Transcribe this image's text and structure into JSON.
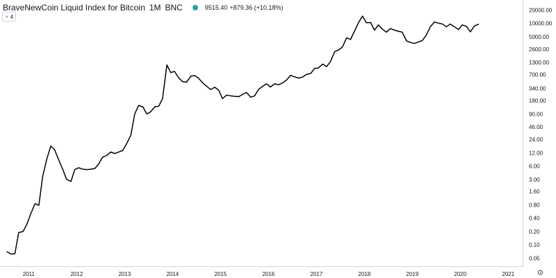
{
  "header": {
    "title": "BraveNewCoin Liquid Index for Bitcoin",
    "interval": "1M",
    "exchange": "BNC",
    "status_color": "#26a69a",
    "price": "9515.40",
    "change": "+879.36 (+10.18%)"
  },
  "collapse_button": {
    "count": "4",
    "icon": "chevron-down-icon"
  },
  "settings": {
    "icon": "gear-icon"
  },
  "colors": {
    "line": "#000000",
    "axis": "#d1d4dc",
    "text": "#131722",
    "up": "#26a69a"
  },
  "chart_data": {
    "type": "line",
    "title": "BraveNewCoin Liquid Index for Bitcoin",
    "yscale": "log",
    "ylim": [
      0.033,
      29000
    ],
    "xlim": [
      2010.4,
      2021.3
    ],
    "grid": false,
    "y_ticks": [
      {
        "v": 20000,
        "label": "20000.00"
      },
      {
        "v": 10000,
        "label": "10000.00"
      },
      {
        "v": 5000,
        "label": "5000.00"
      },
      {
        "v": 2600,
        "label": "2600.00"
      },
      {
        "v": 1300,
        "label": "1300.00"
      },
      {
        "v": 700,
        "label": "700.00"
      },
      {
        "v": 340,
        "label": "340.00"
      },
      {
        "v": 180,
        "label": "180.00"
      },
      {
        "v": 90,
        "label": "90.00"
      },
      {
        "v": 46,
        "label": "46.00"
      },
      {
        "v": 24,
        "label": "24.00"
      },
      {
        "v": 12,
        "label": "12.00"
      },
      {
        "v": 6,
        "label": "6.00"
      },
      {
        "v": 3,
        "label": "3.00"
      },
      {
        "v": 1.6,
        "label": "1.60"
      },
      {
        "v": 0.8,
        "label": "0.80"
      },
      {
        "v": 0.4,
        "label": "0.40"
      },
      {
        "v": 0.2,
        "label": "0.20"
      },
      {
        "v": 0.1,
        "label": "0.10"
      },
      {
        "v": 0.05,
        "label": "0.05"
      }
    ],
    "x_ticks": [
      {
        "v": 2011,
        "label": "2011"
      },
      {
        "v": 2012,
        "label": "2012"
      },
      {
        "v": 2013,
        "label": "2013"
      },
      {
        "v": 2014,
        "label": "2014"
      },
      {
        "v": 2015,
        "label": "2015"
      },
      {
        "v": 2016,
        "label": "2016"
      },
      {
        "v": 2017,
        "label": "2017"
      },
      {
        "v": 2018,
        "label": "2018"
      },
      {
        "v": 2019,
        "label": "2019"
      },
      {
        "v": 2020,
        "label": "2020"
      },
      {
        "v": 2021,
        "label": "2021"
      }
    ],
    "series": [
      {
        "x": [
          2010.55,
          2010.63,
          2010.71,
          2010.79,
          2010.88,
          2010.96,
          2011.04,
          2011.13,
          2011.21,
          2011.29,
          2011.38,
          2011.46,
          2011.54,
          2011.63,
          2011.71,
          2011.79,
          2011.88,
          2011.96,
          2012.04,
          2012.13,
          2012.21,
          2012.29,
          2012.38,
          2012.46,
          2012.54,
          2012.63,
          2012.71,
          2012.79,
          2012.88,
          2012.96,
          2013.04,
          2013.13,
          2013.21,
          2013.29,
          2013.38,
          2013.46,
          2013.54,
          2013.63,
          2013.71,
          2013.79,
          2013.88,
          2013.96,
          2014.04,
          2014.13,
          2014.21,
          2014.29,
          2014.38,
          2014.46,
          2014.54,
          2014.63,
          2014.71,
          2014.79,
          2014.88,
          2014.96,
          2015.04,
          2015.13,
          2015.21,
          2015.29,
          2015.38,
          2015.46,
          2015.54,
          2015.63,
          2015.71,
          2015.79,
          2015.88,
          2015.96,
          2016.04,
          2016.13,
          2016.21,
          2016.29,
          2016.38,
          2016.46,
          2016.54,
          2016.63,
          2016.71,
          2016.79,
          2016.88,
          2016.96,
          2017.04,
          2017.13,
          2017.21,
          2017.29,
          2017.38,
          2017.46,
          2017.54,
          2017.63,
          2017.71,
          2017.79,
          2017.88,
          2017.96,
          2018.04,
          2018.13,
          2018.21,
          2018.29,
          2018.38,
          2018.46,
          2018.54,
          2018.63,
          2018.71,
          2018.79,
          2018.88,
          2018.96,
          2019.04,
          2019.13,
          2019.21,
          2019.29,
          2019.38,
          2019.46,
          2019.54,
          2019.63,
          2019.71,
          2019.79,
          2019.88,
          2019.96,
          2020.04,
          2020.13,
          2020.21,
          2020.29,
          2020.38
        ],
        "y": [
          0.07,
          0.062,
          0.063,
          0.19,
          0.2,
          0.29,
          0.5,
          0.85,
          0.78,
          3.5,
          9,
          17,
          14,
          8,
          5,
          3,
          2.7,
          5,
          5.5,
          5.1,
          5,
          5.1,
          5.3,
          6.8,
          9.5,
          10.5,
          12.5,
          11.5,
          12.5,
          13.5,
          19,
          30,
          90,
          140,
          130,
          90,
          100,
          130,
          135,
          200,
          1150,
          770,
          820,
          580,
          480,
          470,
          640,
          660,
          580,
          450,
          380,
          320,
          360,
          310,
          200,
          240,
          230,
          225,
          220,
          250,
          275,
          215,
          230,
          320,
          380,
          430,
          365,
          430,
          410,
          450,
          530,
          670,
          620,
          580,
          610,
          700,
          740,
          960,
          980,
          1200,
          1050,
          1350,
          2300,
          2500,
          2900,
          4700,
          4300,
          6500,
          10500,
          14500,
          10300,
          10400,
          7000,
          9200,
          7300,
          6300,
          7600,
          7000,
          6600,
          6300,
          4000,
          3700,
          3500,
          3800,
          4100,
          5400,
          8500,
          10700,
          10100,
          9600,
          8300,
          9600,
          8300,
          7200,
          9200,
          8500,
          6400,
          8600,
          9515
        ]
      }
    ]
  }
}
